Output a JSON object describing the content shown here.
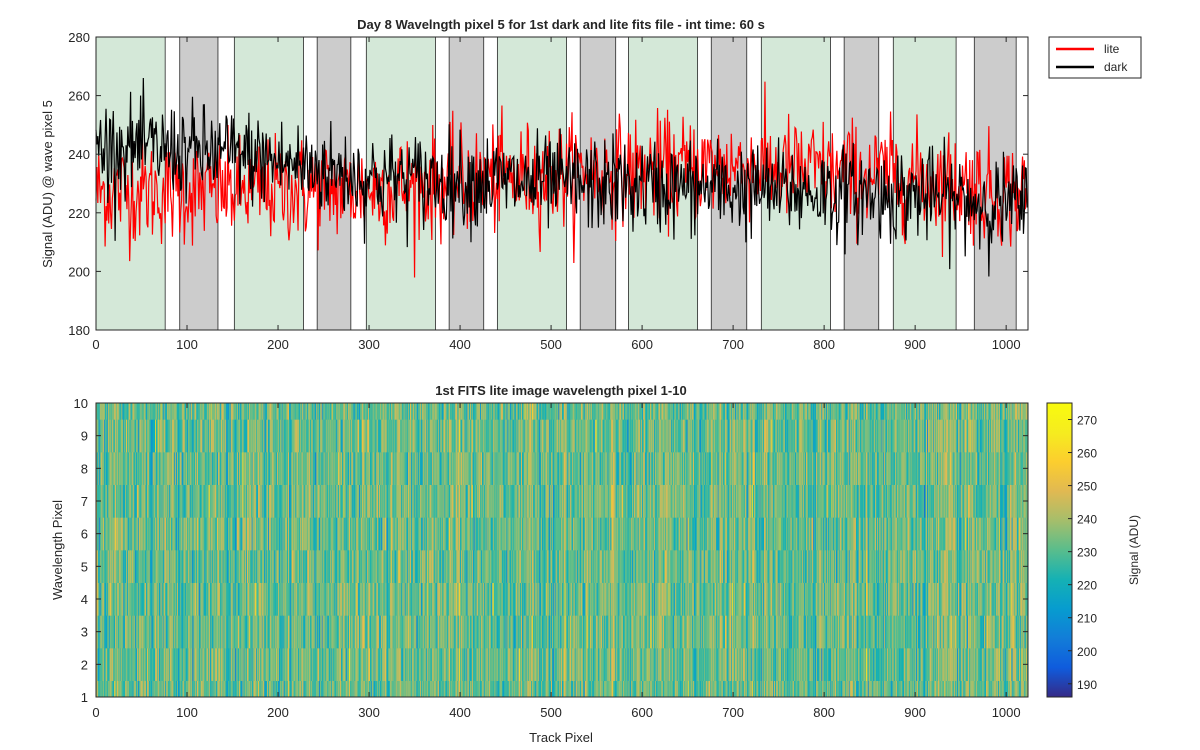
{
  "colors": {
    "lite": "#ff0000",
    "dark": "#000000",
    "green_band": "#d4e8d8",
    "gray_band": "#cccccc"
  },
  "colormap": "parula",
  "chart_data": [
    {
      "type": "line",
      "title": "Day 8 Wavelngth pixel 5 for 1st dark and lite fits file - int time: 60 s",
      "xlabel": "",
      "ylabel": "Signal (ADU) @ wave pixel 5",
      "xlim": [
        0,
        1024
      ],
      "ylim": [
        180,
        280
      ],
      "xticks": [
        "0",
        "100",
        "200",
        "300",
        "400",
        "500",
        "600",
        "700",
        "800",
        "900",
        "1000"
      ],
      "yticks": [
        "180",
        "200",
        "220",
        "240",
        "260",
        "280"
      ],
      "legend": {
        "position": "outside-top-right",
        "entries": [
          "lite",
          "dark"
        ]
      },
      "bands": [
        {
          "x0": 0,
          "x1": 76,
          "color": "green"
        },
        {
          "x0": 92,
          "x1": 134,
          "color": "gray"
        },
        {
          "x0": 152,
          "x1": 228,
          "color": "green"
        },
        {
          "x0": 243,
          "x1": 280,
          "color": "gray"
        },
        {
          "x0": 297,
          "x1": 373,
          "color": "green"
        },
        {
          "x0": 388,
          "x1": 426,
          "color": "gray"
        },
        {
          "x0": 441,
          "x1": 517,
          "color": "green"
        },
        {
          "x0": 532,
          "x1": 571,
          "color": "gray"
        },
        {
          "x0": 585,
          "x1": 661,
          "color": "green"
        },
        {
          "x0": 676,
          "x1": 715,
          "color": "gray"
        },
        {
          "x0": 731,
          "x1": 807,
          "color": "green"
        },
        {
          "x0": 822,
          "x1": 860,
          "color": "gray"
        },
        {
          "x0": 876,
          "x1": 945,
          "color": "green"
        },
        {
          "x0": 965,
          "x1": 1011,
          "color": "gray"
        }
      ],
      "series": [
        {
          "name": "lite",
          "color": "#ff0000",
          "mean_segments": [
            [
              0,
              227
            ],
            [
              300,
              228
            ],
            [
              500,
              233
            ],
            [
              700,
              236
            ],
            [
              900,
              232
            ],
            [
              1024,
              226
            ]
          ],
          "noise_sd": 9,
          "min": 186,
          "max": 268
        },
        {
          "name": "dark",
          "color": "#000000",
          "mean_segments": [
            [
              0,
              243
            ],
            [
              150,
              240
            ],
            [
              300,
              232
            ],
            [
              500,
              230
            ],
            [
              700,
              228
            ],
            [
              900,
              226
            ],
            [
              1024,
              222
            ]
          ],
          "noise_sd": 8,
          "min": 198,
          "max": 266
        }
      ]
    },
    {
      "type": "heatmap",
      "title": "1st FITS lite image wavelength pixel 1-10",
      "xlabel": "Track Pixel",
      "ylabel": "Wavelength Pixel",
      "xlim": [
        0,
        1024
      ],
      "ylim": [
        1,
        10
      ],
      "rows": 10,
      "cols": 1024,
      "xticks": [
        "0",
        "100",
        "200",
        "300",
        "400",
        "500",
        "600",
        "700",
        "800",
        "900",
        "1000"
      ],
      "yticks": [
        "1",
        "2",
        "3",
        "4",
        "5",
        "6",
        "7",
        "8",
        "9",
        "10"
      ],
      "colorbar": {
        "label": "Signal (ADU)",
        "range": [
          186,
          275
        ],
        "ticks": [
          "190",
          "200",
          "210",
          "220",
          "230",
          "240",
          "250",
          "260",
          "270"
        ]
      },
      "value_mean": 232,
      "value_sd": 10
    }
  ]
}
